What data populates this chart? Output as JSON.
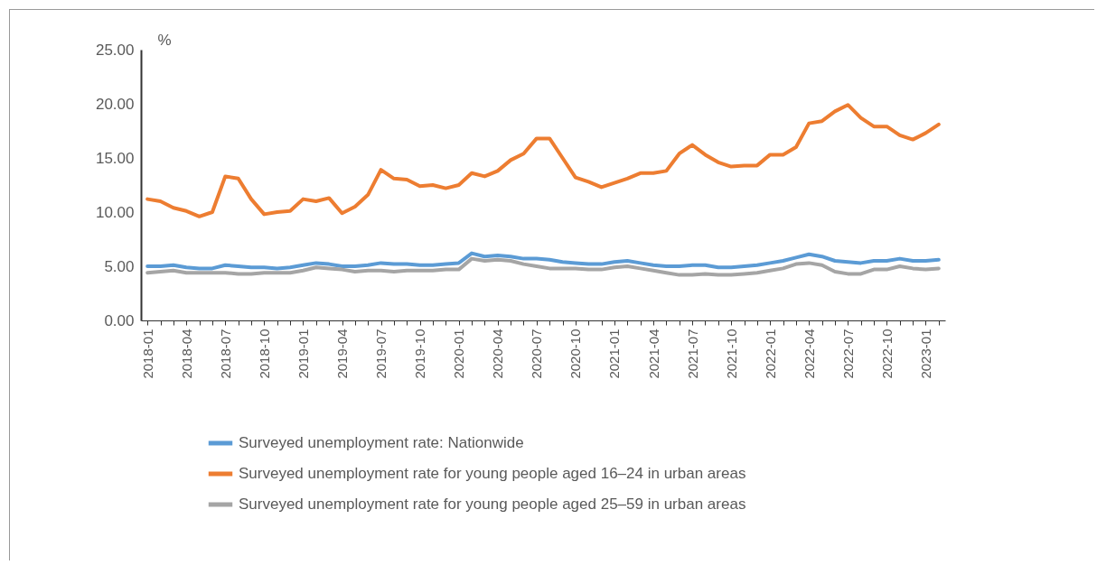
{
  "chart_data": {
    "type": "line",
    "ylabel": "%",
    "categories": [
      "2018-01",
      null,
      null,
      "2018-04",
      null,
      null,
      "2018-07",
      null,
      null,
      "2018-10",
      null,
      null,
      "2019-01",
      null,
      null,
      "2019-04",
      null,
      null,
      "2019-07",
      null,
      null,
      "2019-10",
      null,
      null,
      "2020-01",
      null,
      null,
      "2020-04",
      null,
      null,
      "2020-07",
      null,
      null,
      "2020-10",
      null,
      null,
      "2021-01",
      null,
      null,
      "2021-04",
      null,
      null,
      "2021-07",
      null,
      null,
      "2021-10",
      null,
      null,
      "2022-01",
      null,
      null,
      "2022-04",
      null,
      null,
      "2022-07",
      null,
      null,
      "2022-10",
      null,
      null,
      "2023-01",
      null
    ],
    "series": [
      {
        "name": "Surveyed unemployment rate: Nationwide",
        "color": "#5b9bd5",
        "values": [
          5.0,
          5.0,
          5.1,
          4.9,
          4.8,
          4.8,
          5.1,
          5.0,
          4.9,
          4.9,
          4.8,
          4.9,
          5.1,
          5.3,
          5.2,
          5.0,
          5.0,
          5.1,
          5.3,
          5.2,
          5.2,
          5.1,
          5.1,
          5.2,
          5.3,
          6.2,
          5.9,
          6.0,
          5.9,
          5.7,
          5.7,
          5.6,
          5.4,
          5.3,
          5.2,
          5.2,
          5.4,
          5.5,
          5.3,
          5.1,
          5.0,
          5.0,
          5.1,
          5.1,
          4.9,
          4.9,
          5.0,
          5.1,
          5.3,
          5.5,
          5.8,
          6.1,
          5.9,
          5.5,
          5.4,
          5.3,
          5.5,
          5.5,
          5.7,
          5.5,
          5.5,
          5.6
        ]
      },
      {
        "name": "Surveyed unemployment rate for young people aged 16–24 in urban areas",
        "color": "#ed7d31",
        "values": [
          11.2,
          11.0,
          10.4,
          10.1,
          9.6,
          10.0,
          13.3,
          13.1,
          11.2,
          9.8,
          10.0,
          10.1,
          11.2,
          11.0,
          11.3,
          9.9,
          10.5,
          11.6,
          13.9,
          13.1,
          13.0,
          12.4,
          12.5,
          12.2,
          12.5,
          13.6,
          13.3,
          13.8,
          14.8,
          15.4,
          16.8,
          16.8,
          15.0,
          13.2,
          12.8,
          12.3,
          12.7,
          13.1,
          13.6,
          13.6,
          13.8,
          15.4,
          16.2,
          15.3,
          14.6,
          14.2,
          14.3,
          14.3,
          15.3,
          15.3,
          16.0,
          18.2,
          18.4,
          19.3,
          19.9,
          18.7,
          17.9,
          17.9,
          17.1,
          16.7,
          17.3,
          18.1
        ]
      },
      {
        "name": "Surveyed unemployment rate for young people aged 25–59 in urban areas",
        "color": "#a5a5a5",
        "values": [
          4.4,
          4.5,
          4.6,
          4.4,
          4.4,
          4.4,
          4.4,
          4.3,
          4.3,
          4.4,
          4.4,
          4.4,
          4.6,
          4.9,
          4.8,
          4.7,
          4.5,
          4.6,
          4.6,
          4.5,
          4.6,
          4.6,
          4.6,
          4.7,
          4.7,
          5.7,
          5.5,
          5.6,
          5.5,
          5.2,
          5.0,
          4.8,
          4.8,
          4.8,
          4.7,
          4.7,
          4.9,
          5.0,
          4.8,
          4.6,
          4.4,
          4.2,
          4.2,
          4.3,
          4.2,
          4.2,
          4.3,
          4.4,
          4.6,
          4.8,
          5.2,
          5.3,
          5.1,
          4.5,
          4.3,
          4.3,
          4.7,
          4.7,
          5.0,
          4.8,
          4.7,
          4.8
        ]
      }
    ],
    "ylim": [
      0,
      25
    ],
    "yticks": [
      {
        "value": 0,
        "label": "0.00"
      },
      {
        "value": 5,
        "label": "5.00"
      },
      {
        "value": 10,
        "label": "10.00"
      },
      {
        "value": 15,
        "label": "15.00"
      },
      {
        "value": 20,
        "label": "20.00"
      },
      {
        "value": 25,
        "label": "25.00"
      }
    ],
    "grid": false,
    "legend": "bottom",
    "marker": "none",
    "line_style": "solid"
  }
}
